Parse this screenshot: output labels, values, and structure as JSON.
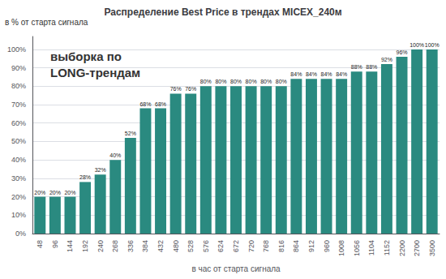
{
  "chart_data": {
    "type": "bar",
    "title": "Распределение Best Price в трендах MICEX_240м",
    "ylabel": "в % от старта сигнала",
    "xlabel": "в час от старта сигнала",
    "annotations": [
      "выборка по",
      "LONG-трендам"
    ],
    "categories": [
      "48",
      "96",
      "144",
      "192",
      "240",
      "268",
      "336",
      "384",
      "432",
      "480",
      "528",
      "576",
      "624",
      "672",
      "720",
      "768",
      "816",
      "864",
      "912",
      "960",
      "1008",
      "1056",
      "1104",
      "1152",
      "2200",
      "2700",
      "3500"
    ],
    "values": [
      20,
      20,
      20,
      28,
      32,
      40,
      52,
      68,
      68,
      76,
      76,
      80,
      80,
      80,
      80,
      80,
      80,
      84,
      84,
      84,
      84,
      88,
      88,
      92,
      96,
      100,
      100
    ],
    "value_labels": [
      "20%",
      "20%",
      "20%",
      "28%",
      "32%",
      "40%",
      "52%",
      "68%",
      "68%",
      "76%",
      "76%",
      "80%",
      "80%",
      "80%",
      "80%",
      "80%",
      "80%",
      "84%",
      "84%",
      "84%",
      "84%",
      "88%",
      "88%",
      "92%",
      "96%",
      "100%",
      "100%"
    ],
    "data_labels": true,
    "color": "#2a8a80",
    "ylim": [
      0,
      107
    ],
    "yticks": [
      {
        "value": 0,
        "label": "0%"
      },
      {
        "value": 10,
        "label": "10%"
      },
      {
        "value": 20,
        "label": "20%"
      },
      {
        "value": 30,
        "label": "30%"
      },
      {
        "value": 40,
        "label": "40%"
      },
      {
        "value": 50,
        "label": "50%"
      },
      {
        "value": 60,
        "label": "60%"
      },
      {
        "value": 70,
        "label": "70%"
      },
      {
        "value": 80,
        "label": "80%"
      },
      {
        "value": 90,
        "label": "90%"
      },
      {
        "value": 100,
        "label": "100%"
      }
    ],
    "grid": true
  }
}
